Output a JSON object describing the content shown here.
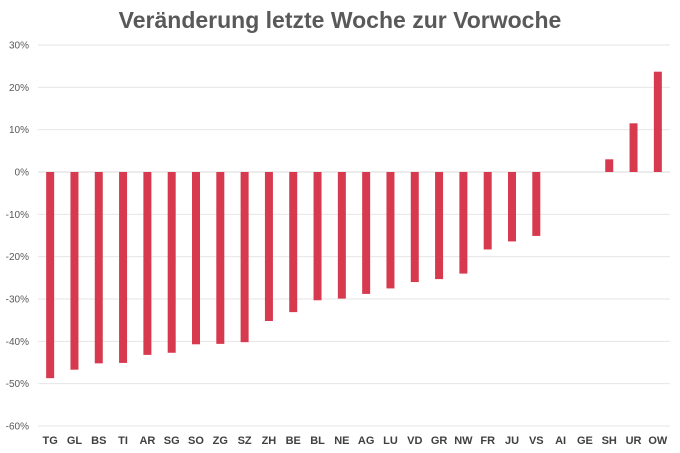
{
  "chart_data": {
    "type": "bar",
    "title": "Veränderung letzte Woche zur Vorwoche",
    "xlabel": "",
    "ylabel": "",
    "ylim": [
      -0.6,
      0.3
    ],
    "yticks": [
      0.3,
      0.2,
      0.1,
      0.0,
      -0.1,
      -0.2,
      -0.3,
      -0.4,
      -0.5,
      -0.6
    ],
    "ytick_labels": [
      "30%",
      "20%",
      "10%",
      "0%",
      "-10%",
      "-20%",
      "-30%",
      "-40%",
      "-50%",
      "-60%"
    ],
    "grid": true,
    "legend": "none",
    "color": "#d73a4e",
    "categories": [
      "TG",
      "GL",
      "BS",
      "TI",
      "AR",
      "SG",
      "SO",
      "ZG",
      "SZ",
      "ZH",
      "BE",
      "BL",
      "NE",
      "AG",
      "LU",
      "VD",
      "GR",
      "NW",
      "FR",
      "JU",
      "VS",
      "AI",
      "GE",
      "SH",
      "UR",
      "OW"
    ],
    "values": [
      -0.487,
      -0.467,
      -0.452,
      -0.451,
      -0.432,
      -0.427,
      -0.407,
      -0.406,
      -0.402,
      -0.352,
      -0.331,
      -0.303,
      -0.299,
      -0.288,
      -0.275,
      -0.26,
      -0.253,
      -0.24,
      -0.183,
      -0.164,
      -0.151,
      0.0,
      0.0,
      0.03,
      0.115,
      0.237
    ]
  }
}
